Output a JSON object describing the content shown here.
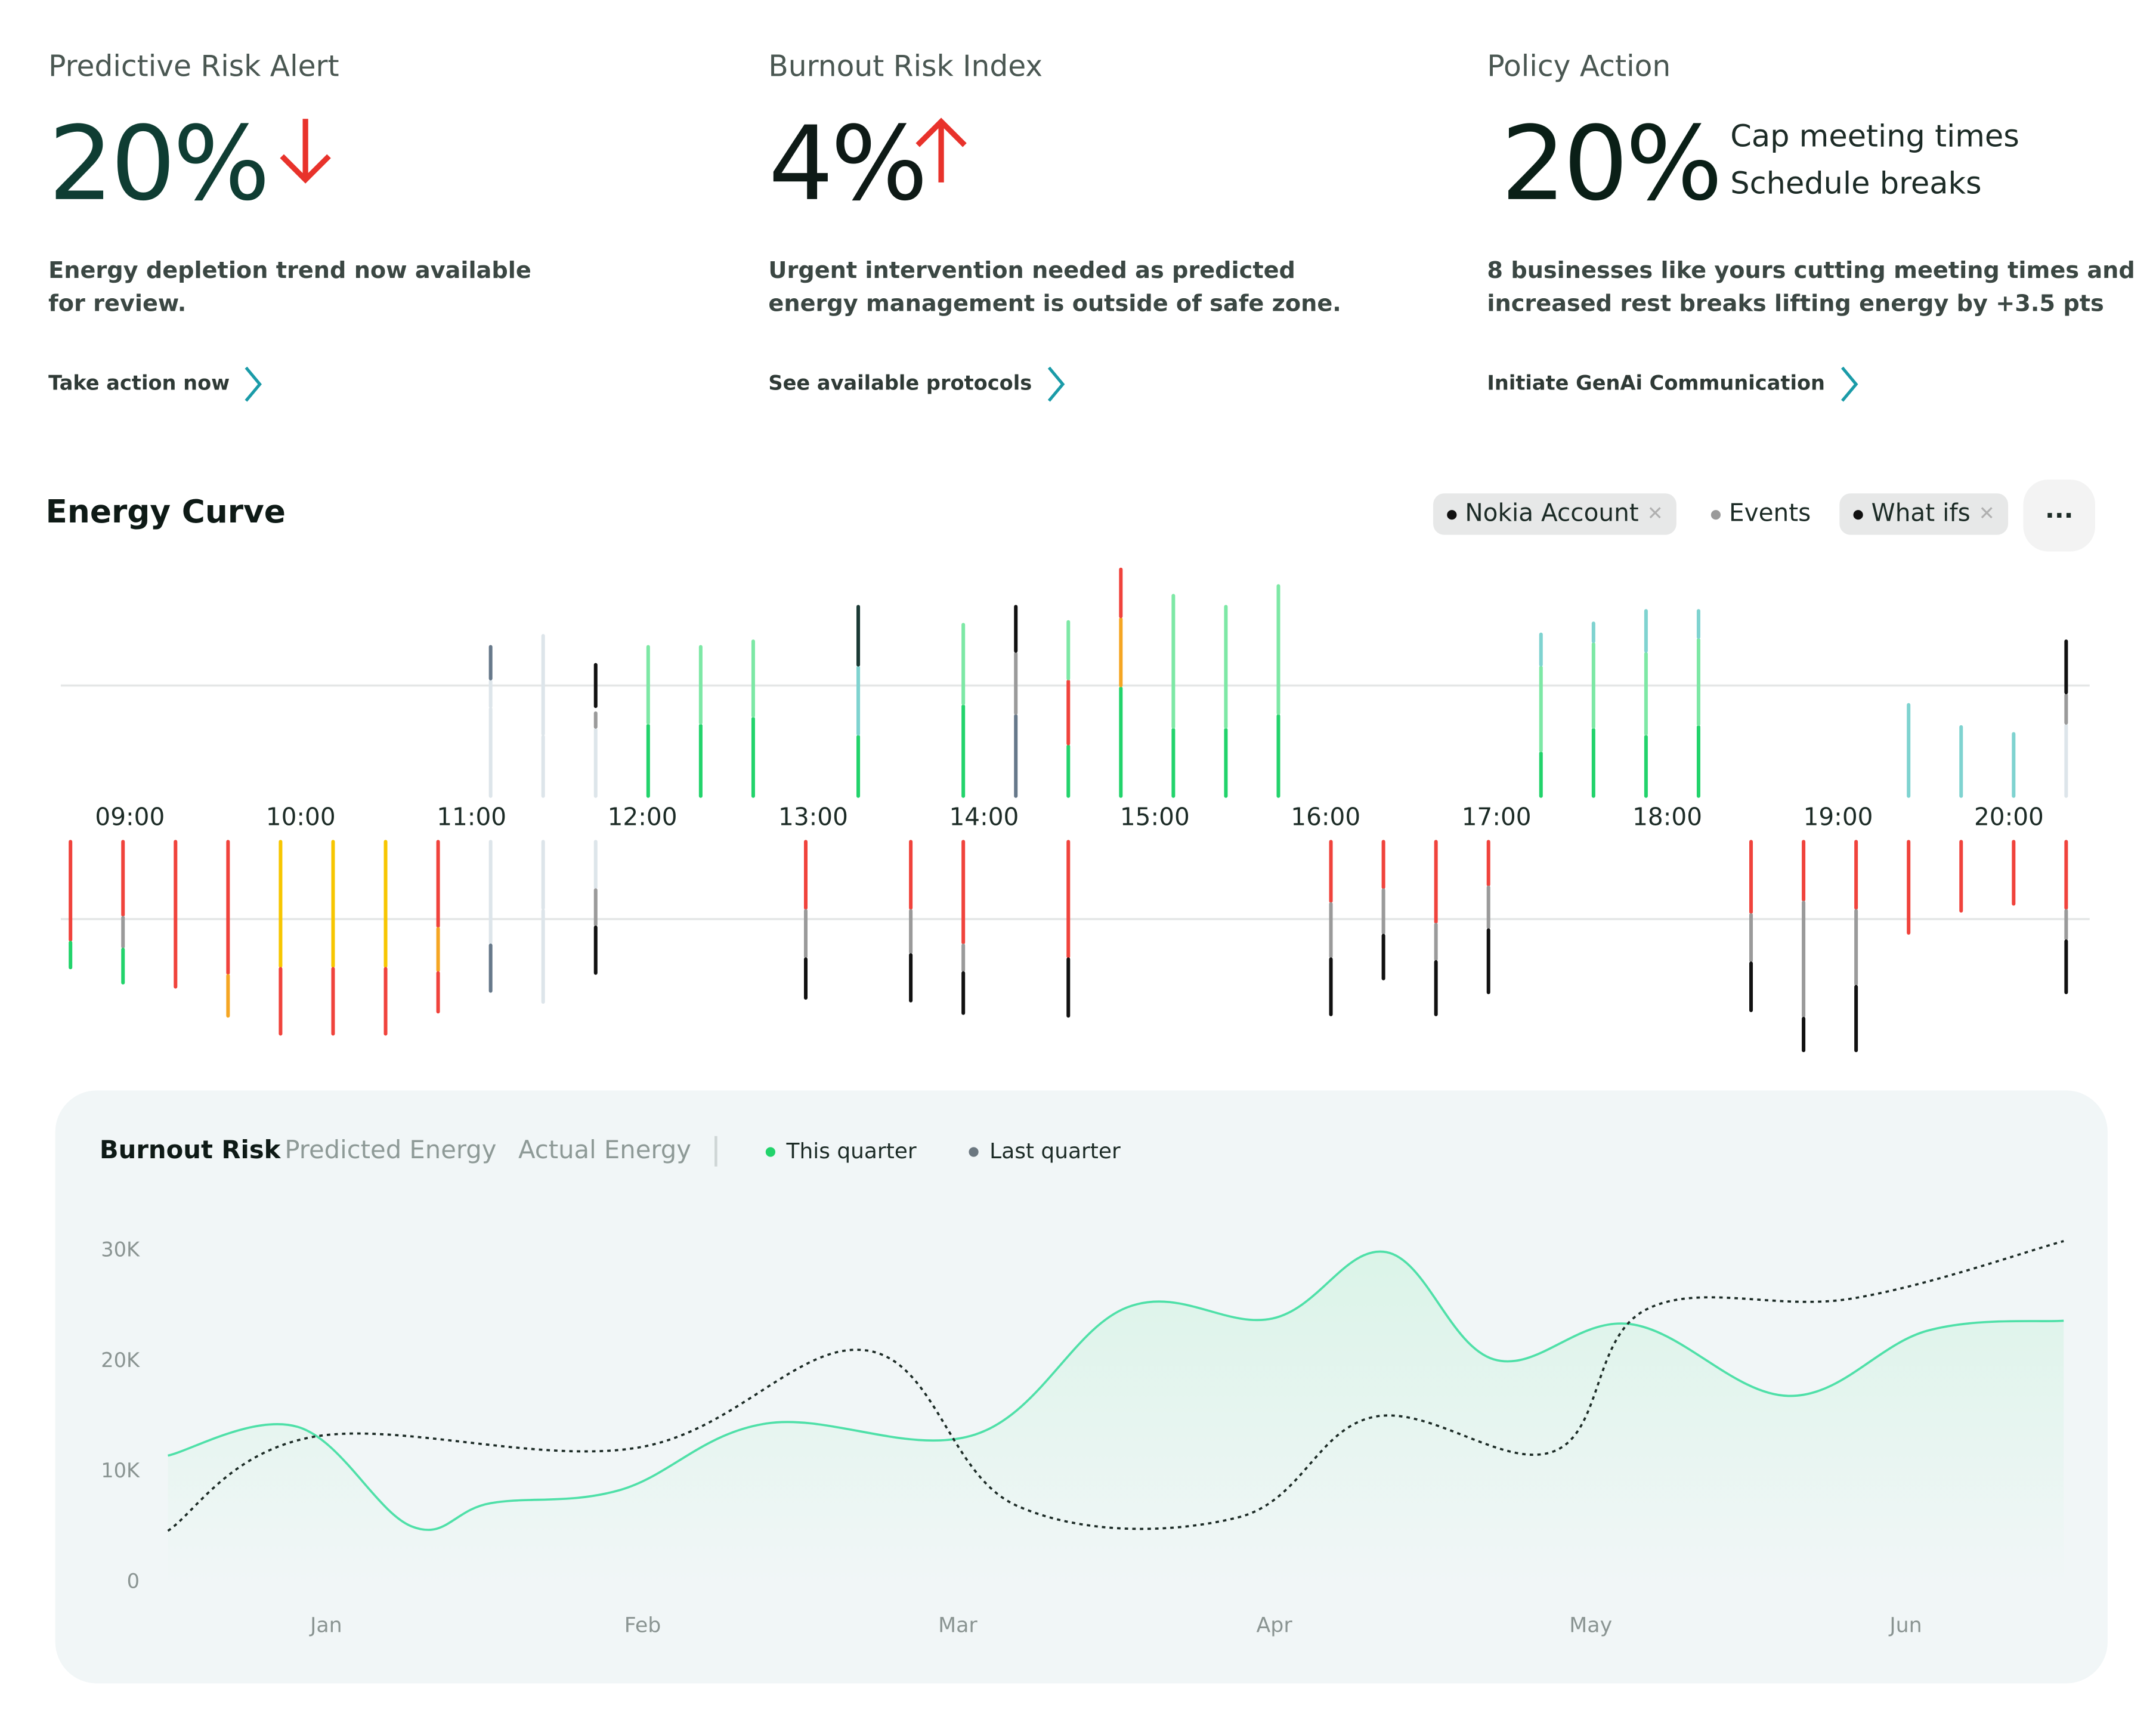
{
  "cards": [
    {
      "title": "Predictive Risk Alert",
      "value": "20%",
      "trend": "down",
      "description_lines": [
        "Energy depletion trend now available",
        "for review."
      ],
      "link": "Take action now"
    },
    {
      "title": "Burnout Risk Index",
      "value": "4%",
      "trend": "up",
      "description_lines": [
        "Urgent intervention needed as predicted",
        "energy management is outside of safe zone."
      ],
      "link": "See available protocols"
    },
    {
      "title": "Policy Action",
      "value": "20%",
      "actions": [
        "Cap meeting times",
        "Schedule breaks"
      ],
      "description_lines": [
        "8 businesses like yours cutting meeting times and",
        "increased rest breaks lifting energy by +3.5 pts"
      ],
      "link": "Initiate GenAi Communication"
    }
  ],
  "colors": {
    "alert_red": "#e8322b",
    "link_teal": "#1a9ba8",
    "value_green": "#0f3d33",
    "this_quarter": "#4fe0a8",
    "last_quarter": "#1c2b26"
  },
  "energy_curve": {
    "title": "Energy Curve",
    "filters": [
      {
        "label": "Nokia Account",
        "active": true,
        "dot": "#111111",
        "removable": true
      },
      {
        "label": "Events",
        "active": false,
        "dot": "#9a9a9a",
        "removable": false
      },
      {
        "label": "What ifs",
        "active": true,
        "dot": "#111111",
        "removable": true
      }
    ],
    "more_label": "···",
    "times": [
      "09:00",
      "10:00",
      "11:00",
      "12:00",
      "13:00",
      "14:00",
      "15:00",
      "16:00",
      "17:00",
      "18:00",
      "19:00",
      "20:00"
    ],
    "palette": {
      "g": "#22d36b",
      "lg": "#7de8a5",
      "t": "#7fd3d0",
      "r": "#f0433c",
      "o": "#f5a623",
      "y": "#f7c600",
      "k": "#111111",
      "gr": "#9a9a9a",
      "sl": "#66788a",
      "lt": "#dde5ea",
      "dk": "#1b3a35"
    },
    "upper": [
      {
        "slot": 8,
        "segs": [
          [
            "lt",
            0,
            65
          ],
          [
            "lt",
            65,
            85
          ],
          [
            "sl",
            85,
            110
          ]
        ]
      },
      {
        "slot": 9,
        "segs": [
          [
            "lt",
            0,
            45
          ],
          [
            "lt",
            45,
            118
          ]
        ]
      },
      {
        "slot": 10,
        "segs": [
          [
            "lt",
            0,
            50
          ],
          [
            "gr",
            50,
            62
          ],
          [
            "k",
            65,
            97
          ]
        ]
      },
      {
        "slot": 11,
        "segs": [
          [
            "g",
            0,
            53
          ],
          [
            "lg",
            53,
            110
          ]
        ]
      },
      {
        "slot": 12,
        "segs": [
          [
            "g",
            0,
            53
          ],
          [
            "lg",
            53,
            110
          ]
        ]
      },
      {
        "slot": 13,
        "segs": [
          [
            "g",
            0,
            58
          ],
          [
            "lg",
            58,
            114
          ]
        ]
      },
      {
        "slot": 15,
        "segs": [
          [
            "g",
            0,
            45
          ],
          [
            "t",
            45,
            95
          ],
          [
            "dk",
            95,
            139
          ]
        ]
      },
      {
        "slot": 17,
        "segs": [
          [
            "g",
            0,
            67
          ],
          [
            "lg",
            67,
            126
          ]
        ]
      },
      {
        "slot": 18,
        "segs": [
          [
            "sl",
            0,
            60
          ],
          [
            "gr",
            60,
            105
          ],
          [
            "k",
            105,
            139
          ]
        ]
      },
      {
        "slot": 19,
        "segs": [
          [
            "g",
            0,
            38
          ],
          [
            "r",
            38,
            85
          ],
          [
            "lg",
            85,
            128
          ]
        ]
      },
      {
        "slot": 20,
        "segs": [
          [
            "g",
            0,
            80
          ],
          [
            "o",
            80,
            130
          ],
          [
            "r",
            130,
            166
          ]
        ]
      },
      {
        "slot": 21,
        "segs": [
          [
            "g",
            0,
            50
          ],
          [
            "lg",
            50,
            147
          ]
        ]
      },
      {
        "slot": 22,
        "segs": [
          [
            "g",
            0,
            50
          ],
          [
            "lg",
            50,
            139
          ]
        ]
      },
      {
        "slot": 23,
        "segs": [
          [
            "g",
            0,
            60
          ],
          [
            "lg",
            60,
            154
          ]
        ]
      },
      {
        "slot": 28,
        "segs": [
          [
            "g",
            0,
            33
          ],
          [
            "lg",
            33,
            95
          ],
          [
            "t",
            95,
            119
          ]
        ]
      },
      {
        "slot": 29,
        "segs": [
          [
            "g",
            0,
            50
          ],
          [
            "lg",
            50,
            112
          ],
          [
            "t",
            112,
            127
          ]
        ]
      },
      {
        "slot": 30,
        "segs": [
          [
            "g",
            0,
            45
          ],
          [
            "lg",
            45,
            105
          ],
          [
            "t",
            105,
            136
          ]
        ]
      },
      {
        "slot": 31,
        "segs": [
          [
            "g",
            0,
            52
          ],
          [
            "lg",
            52,
            115
          ],
          [
            "t",
            115,
            136
          ]
        ]
      },
      {
        "slot": 35,
        "segs": [
          [
            "t",
            0,
            68
          ]
        ]
      },
      {
        "slot": 36,
        "segs": [
          [
            "t",
            0,
            52
          ]
        ]
      },
      {
        "slot": 37,
        "segs": [
          [
            "t",
            0,
            47
          ]
        ]
      },
      {
        "slot": 38,
        "segs": [
          [
            "lt",
            0,
            53
          ],
          [
            "gr",
            53,
            75
          ],
          [
            "k",
            75,
            114
          ]
        ]
      }
    ],
    "lower": [
      {
        "slot": 0,
        "segs": [
          [
            "r",
            0,
            73
          ],
          [
            "g",
            73,
            93
          ]
        ]
      },
      {
        "slot": 1,
        "segs": [
          [
            "r",
            0,
            55
          ],
          [
            "gr",
            55,
            78
          ],
          [
            "g",
            78,
            104
          ]
        ]
      },
      {
        "slot": 2,
        "segs": [
          [
            "r",
            0,
            107
          ]
        ]
      },
      {
        "slot": 3,
        "segs": [
          [
            "r",
            0,
            97
          ],
          [
            "o",
            97,
            128
          ]
        ]
      },
      {
        "slot": 4,
        "segs": [
          [
            "y",
            0,
            92
          ],
          [
            "r",
            92,
            141
          ]
        ]
      },
      {
        "slot": 5,
        "segs": [
          [
            "y",
            0,
            92
          ],
          [
            "r",
            92,
            141
          ]
        ]
      },
      {
        "slot": 6,
        "segs": [
          [
            "y",
            0,
            92
          ],
          [
            "r",
            92,
            141
          ]
        ]
      },
      {
        "slot": 7,
        "segs": [
          [
            "r",
            0,
            63
          ],
          [
            "o",
            63,
            95
          ],
          [
            "r",
            95,
            125
          ]
        ]
      },
      {
        "slot": 8,
        "segs": [
          [
            "lt",
            0,
            75
          ],
          [
            "sl",
            75,
            110
          ]
        ]
      },
      {
        "slot": 9,
        "segs": [
          [
            "lt",
            0,
            50
          ],
          [
            "lt",
            50,
            118
          ]
        ]
      },
      {
        "slot": 10,
        "segs": [
          [
            "lt",
            0,
            35
          ],
          [
            "gr",
            35,
            62
          ],
          [
            "k",
            62,
            97
          ]
        ]
      },
      {
        "slot": 14,
        "segs": [
          [
            "r",
            0,
            50
          ],
          [
            "gr",
            50,
            85
          ],
          [
            "k",
            85,
            115
          ]
        ]
      },
      {
        "slot": 16,
        "segs": [
          [
            "r",
            0,
            50
          ],
          [
            "gr",
            50,
            82
          ],
          [
            "k",
            82,
            117
          ]
        ]
      },
      {
        "slot": 17,
        "segs": [
          [
            "r",
            0,
            75
          ],
          [
            "gr",
            75,
            95
          ],
          [
            "k",
            95,
            126
          ]
        ]
      },
      {
        "slot": 19,
        "segs": [
          [
            "r",
            0,
            85
          ],
          [
            "k",
            85,
            128
          ]
        ]
      },
      {
        "slot": 24,
        "segs": [
          [
            "r",
            0,
            45
          ],
          [
            "gr",
            45,
            85
          ],
          [
            "k",
            85,
            127
          ]
        ]
      },
      {
        "slot": 25,
        "segs": [
          [
            "r",
            0,
            35
          ],
          [
            "gr",
            35,
            68
          ],
          [
            "k",
            68,
            101
          ]
        ]
      },
      {
        "slot": 26,
        "segs": [
          [
            "r",
            0,
            60
          ],
          [
            "gr",
            60,
            87
          ],
          [
            "k",
            87,
            127
          ]
        ]
      },
      {
        "slot": 27,
        "segs": [
          [
            "r",
            0,
            33
          ],
          [
            "gr",
            33,
            64
          ],
          [
            "k",
            64,
            111
          ]
        ]
      },
      {
        "slot": 32,
        "segs": [
          [
            "r",
            0,
            53
          ],
          [
            "gr",
            53,
            88
          ],
          [
            "k",
            88,
            124
          ]
        ]
      },
      {
        "slot": 33,
        "segs": [
          [
            "r",
            0,
            44
          ],
          [
            "gr",
            44,
            128
          ],
          [
            "k",
            128,
            153
          ]
        ]
      },
      {
        "slot": 34,
        "segs": [
          [
            "r",
            0,
            50
          ],
          [
            "gr",
            50,
            105
          ],
          [
            "k",
            105,
            153
          ]
        ]
      },
      {
        "slot": 35,
        "segs": [
          [
            "r",
            0,
            68
          ]
        ]
      },
      {
        "slot": 36,
        "segs": [
          [
            "r",
            0,
            52
          ]
        ]
      },
      {
        "slot": 37,
        "segs": [
          [
            "r",
            0,
            47
          ]
        ]
      },
      {
        "slot": 38,
        "segs": [
          [
            "r",
            0,
            50
          ],
          [
            "gr",
            50,
            72
          ],
          [
            "k",
            72,
            111
          ]
        ]
      }
    ]
  },
  "chart_data": {
    "type": "line",
    "tabs": [
      "Burnout Risk",
      "Predicted Energy",
      "Actual Energy"
    ],
    "active_tab": "Burnout Risk",
    "categories": [
      "Jan",
      "Feb",
      "Mar",
      "Apr",
      "May",
      "Jun"
    ],
    "y_ticks": [
      "0",
      "10K",
      "20K",
      "30K"
    ],
    "ylim": [
      0,
      30000
    ],
    "grid": false,
    "legend_position": "top-left",
    "series": [
      {
        "name": "This quarter",
        "color": "#4fe0a8",
        "style": "solid",
        "filled": true,
        "points": [
          [
            0.5,
            11600
          ],
          [
            0.91,
            14200
          ],
          [
            1.27,
            5200
          ],
          [
            1.52,
            7300
          ],
          [
            1.93,
            8500
          ],
          [
            2.39,
            14500
          ],
          [
            3.05,
            13500
          ],
          [
            3.53,
            25000
          ],
          [
            3.99,
            24000
          ],
          [
            4.35,
            30000
          ],
          [
            4.69,
            20300
          ],
          [
            5.12,
            23500
          ],
          [
            5.62,
            17000
          ],
          [
            6.06,
            22900
          ],
          [
            6.49,
            23800
          ]
        ]
      },
      {
        "name": "Last quarter",
        "color": "#1c2b26",
        "style": "dotted",
        "filled": false,
        "points": [
          [
            0.5,
            4800
          ],
          [
            0.96,
            13300
          ],
          [
            1.98,
            12300
          ],
          [
            2.71,
            21100
          ],
          [
            3.18,
            7100
          ],
          [
            3.88,
            6000
          ],
          [
            4.31,
            15100
          ],
          [
            4.88,
            12000
          ],
          [
            5.17,
            24800
          ],
          [
            5.82,
            25800
          ],
          [
            6.49,
            31000
          ]
        ]
      }
    ]
  }
}
